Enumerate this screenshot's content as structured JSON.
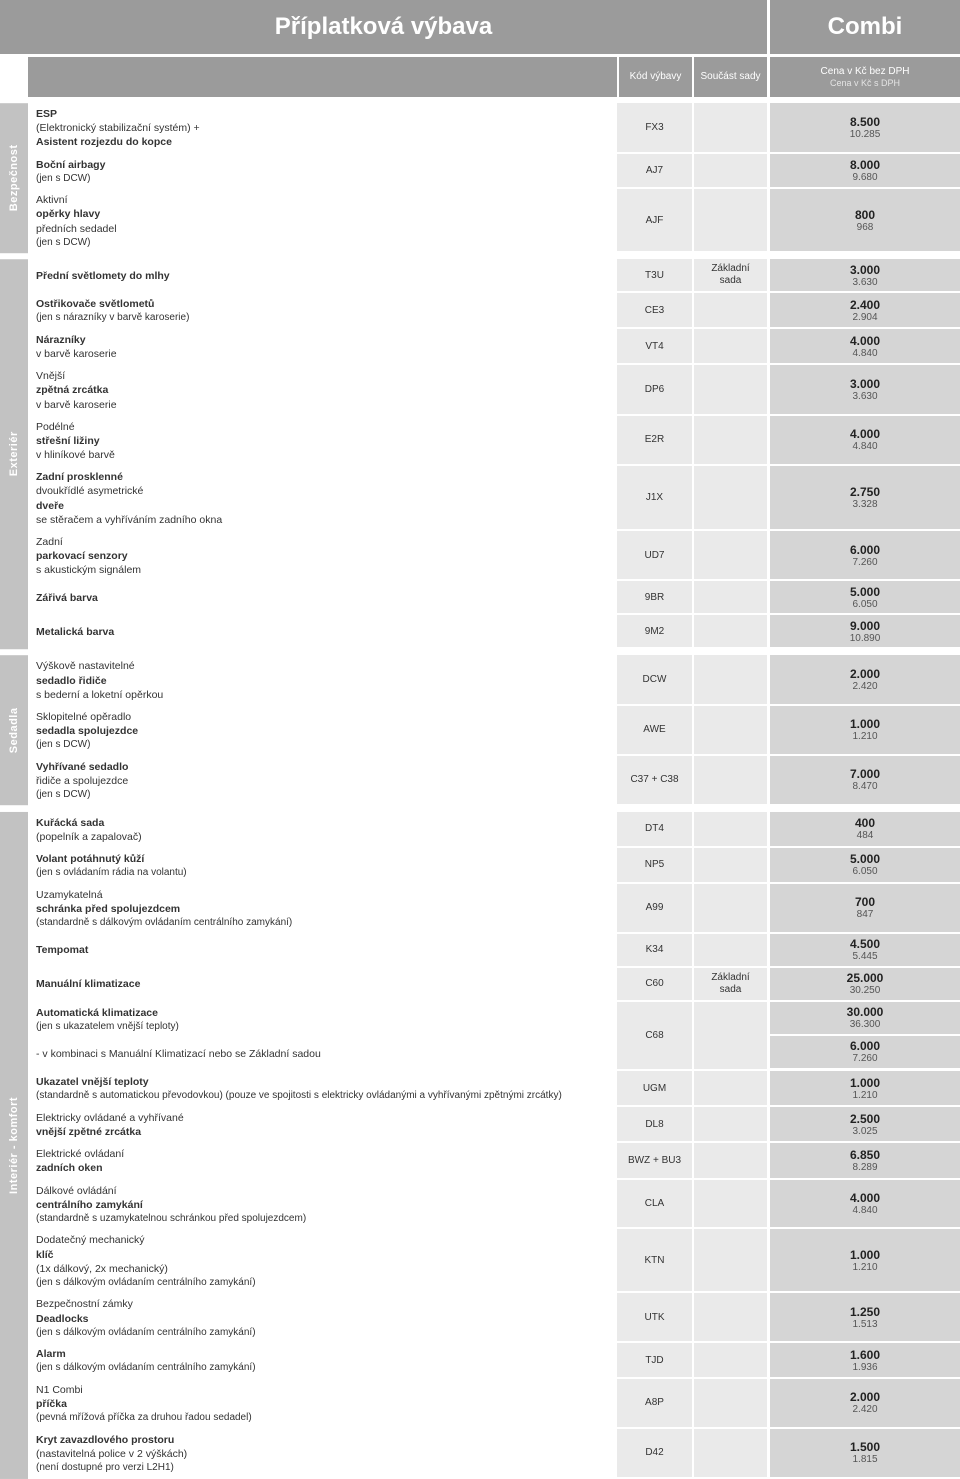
{
  "header": {
    "title": "Příplatková výbava",
    "variant": "Combi",
    "col_code": "Kód výbavy",
    "col_set": "Součást sady",
    "col_price_main": "Cena v Kč bez DPH",
    "col_price_sub": "Cena v Kč s DPH"
  },
  "sections": [
    {
      "label": "Bezpečnost",
      "rows": [
        {
          "desc": "<b>ESP</b> (Elektronický stabilizační systém) + <b>Asistent rozjezdu do kopce</b>",
          "code": "FX3",
          "set": "",
          "p1": "8.500",
          "p2": "10.285"
        },
        {
          "desc": "<b>Boční airbagy</b>",
          "note": "(jen s DCW)",
          "code": "AJ7",
          "set": "",
          "p1": "8.000",
          "p2": "9.680"
        },
        {
          "desc": "Aktivní <b>opěrky hlavy</b> předních sedadel",
          "note": "(jen s DCW)",
          "code": "AJF",
          "set": "",
          "p1": "800",
          "p2": "968"
        }
      ]
    },
    {
      "label": "Exteriér",
      "rows": [
        {
          "desc": "<b>Přední světlomety do mlhy</b>",
          "code": "T3U",
          "set": "Základní sada",
          "p1": "3.000",
          "p2": "3.630"
        },
        {
          "desc": "<b>Ostřikovače světlometů</b>",
          "note": "(jen s nárazníky v barvě karoserie)",
          "code": "CE3",
          "set": "",
          "p1": "2.400",
          "p2": "2.904"
        },
        {
          "desc": "<b>Nárazníky</b> v barvě karoserie",
          "code": "VT4",
          "set": "",
          "p1": "4.000",
          "p2": "4.840"
        },
        {
          "desc": "Vnější <b>zpětná zrcátka</b> v barvě karoserie",
          "code": "DP6",
          "set": "",
          "p1": "3.000",
          "p2": "3.630"
        },
        {
          "desc": "Podélné <b>střešní ližiny</b> v hliníkové barvě",
          "code": "E2R",
          "set": "",
          "p1": "4.000",
          "p2": "4.840"
        },
        {
          "desc": "<b>Zadní prosklenné</b> dvoukřídlé asymetrické <b>dveře</b> se stěračem a vyhříváním zadního okna",
          "code": "J1X",
          "set": "",
          "p1": "2.750",
          "p2": "3.328"
        },
        {
          "desc": "Zadní <b>parkovací senzory</b> s akustickým signálem",
          "code": "UD7",
          "set": "",
          "p1": "6.000",
          "p2": "7.260"
        },
        {
          "desc": "<b>Zářivá barva</b>",
          "code": "9BR",
          "set": "",
          "p1": "5.000",
          "p2": "6.050"
        },
        {
          "desc": "<b>Metalická barva</b>",
          "code": "9M2",
          "set": "",
          "p1": "9.000",
          "p2": "10.890"
        }
      ]
    },
    {
      "label": "Sedadla",
      "rows": [
        {
          "desc": "Výškově nastavitelné <b>sedadlo řidiče</b> s bederní a loketní opěrkou",
          "code": "DCW",
          "set": "",
          "p1": "2.000",
          "p2": "2.420"
        },
        {
          "desc": "Sklopitelné opěradlo <b>sedadla spolujezdce</b>",
          "note": "(jen s DCW)",
          "code": "AWE",
          "set": "",
          "p1": "1.000",
          "p2": "1.210"
        },
        {
          "desc": "<b>Vyhřívané sedadlo</b> řidiče a spolujezdce",
          "note": "(jen s DCW)",
          "code": "C37 + C38",
          "set": "",
          "p1": "7.000",
          "p2": "8.470"
        }
      ]
    },
    {
      "label": "Interiér - komfort",
      "rows": [
        {
          "desc": "<b>Kuřácká sada</b> (popelník a zapalovač)",
          "code": "DT4",
          "set": "",
          "p1": "400",
          "p2": "484"
        },
        {
          "desc": "<b>Volant potáhnutý kůží</b>",
          "note": "(jen s ovládaním rádia na volantu)",
          "code": "NP5",
          "set": "",
          "p1": "5.000",
          "p2": "6.050"
        },
        {
          "desc": "Uzamykatelná <b>schránka před spolujezdcem</b>",
          "note": "(standardně s dálkovým ovládaním centrálního zamykání)",
          "code": "A99",
          "set": "",
          "p1": "700",
          "p2": "847"
        },
        {
          "desc": "<b>Tempomat</b>",
          "code": "K34",
          "set": "",
          "p1": "4.500",
          "p2": "5.445"
        },
        {
          "desc": "<b>Manuální klimatizace</b>",
          "code": "C60",
          "set": "Základní sada",
          "p1": "25.000",
          "p2": "30.250"
        },
        {
          "desc": "<b>Automatická klimatizace</b>",
          "note": "(jen s ukazatelem vnější teploty)",
          "code": "C68",
          "set": "",
          "p1": "30.000",
          "p2": "36.300",
          "span_code": 2
        },
        {
          "desc": "- v kombinaci s Manuální Klimatizací nebo se Základní sadou",
          "p1": "6.000",
          "p2": "7.260",
          "no_code": true
        },
        {
          "desc": "<b>Ukazatel vnější teploty</b>",
          "note": "(standardně s automatickou převodovkou) (pouze ve spojitosti s elektricky ovládanými a vyhřívanými zpětnými zrcátky)",
          "code": "UGM",
          "set": "",
          "p1": "1.000",
          "p2": "1.210"
        },
        {
          "desc": "Elektricky ovládané a vyhřívané <b>vnější zpětné zrcátka</b>",
          "code": "DL8",
          "set": "",
          "p1": "2.500",
          "p2": "3.025"
        },
        {
          "desc": "Elektrické ovládaní <b>zadních oken</b>",
          "code": "BWZ + BU3",
          "set": "",
          "p1": "6.850",
          "p2": "8.289"
        },
        {
          "desc": "Dálkové ovládání <b>centrálního zamykání</b>",
          "note": "(standardně s uzamykatelnou schránkou před spolujezdcem)",
          "code": "CLA",
          "set": "",
          "p1": "4.000",
          "p2": "4.840"
        },
        {
          "desc": "Dodatečný mechanický <b>klíč</b> (1x dálkový, 2x mechanický)",
          "note": "(jen s dálkovým ovládaním centrálního zamykání)",
          "code": "KTN",
          "set": "",
          "p1": "1.000",
          "p2": "1.210"
        },
        {
          "desc": "Bezpečnostní zámky <b>Deadlocks</b>",
          "note": "(jen s dálkovým ovládaním centrálního zamykání)",
          "code": "UTK",
          "set": "",
          "p1": "1.250",
          "p2": "1.513"
        },
        {
          "desc": "<b>Alarm</b>",
          "note": "(jen s dálkovým ovládaním centrálního zamykání)",
          "code": "TJD",
          "set": "",
          "p1": "1.600",
          "p2": "1.936"
        },
        {
          "desc": "N1 Combi <b>příčka</b>",
          "note": "(pevná mřížová příčka za druhou řadou sedadel)",
          "code": "A8P",
          "set": "",
          "p1": "2.000",
          "p2": "2.420"
        },
        {
          "desc": "<b>Kryt zavazdlového prostoru</b> (nastavitelná police v 2 výškách)",
          "note": "(není dostupné pro verzi L2H1)",
          "code": "D42",
          "set": "",
          "p1": "1.500",
          "p2": "1.815"
        }
      ]
    }
  ]
}
